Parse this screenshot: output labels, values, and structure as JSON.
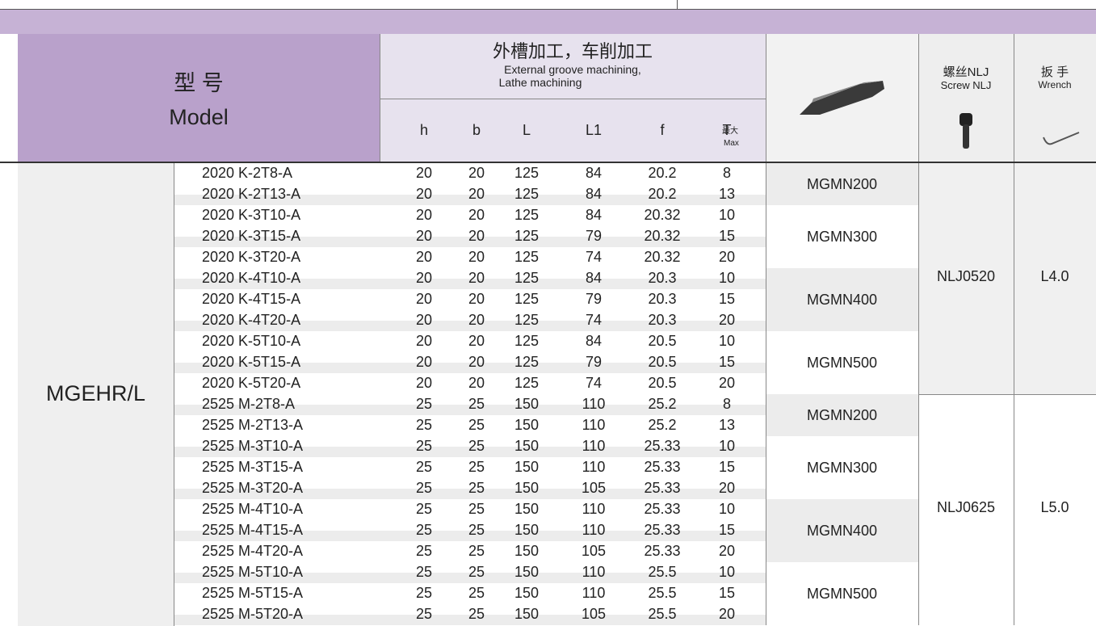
{
  "header": {
    "model_cn": "型 号",
    "model_en": "Model",
    "group_cn": "外槽加工，车削加工",
    "group_en": [
      "External groove machining,",
      "Lathe machining"
    ],
    "columns": [
      "h",
      "b",
      "L",
      "L1",
      "f",
      "T"
    ],
    "t_cn": "最大",
    "t_en": "Max",
    "screw_cn": "螺丝NLJ",
    "screw_en": "Screw NLJ",
    "wrench_cn": "扳 手",
    "wrench_en": "Wrench"
  },
  "family": "MGEHR/L",
  "groups": [
    {
      "screw": "NLJ0520",
      "wrench": "L4.0",
      "inserts": [
        {
          "insert": "MGMN200",
          "rows": [
            [
              "2020 K-2T8-A",
              "20",
              "20",
              "125",
              "84",
              "20.2",
              "8"
            ],
            [
              "2020 K-2T13-A",
              "20",
              "20",
              "125",
              "84",
              "20.2",
              "13"
            ]
          ]
        },
        {
          "insert": "MGMN300",
          "rows": [
            [
              "2020 K-3T10-A",
              "20",
              "20",
              "125",
              "84",
              "20.32",
              "10"
            ],
            [
              "2020 K-3T15-A",
              "20",
              "20",
              "125",
              "79",
              "20.32",
              "15"
            ],
            [
              "2020 K-3T20-A",
              "20",
              "20",
              "125",
              "74",
              "20.32",
              "20"
            ]
          ]
        },
        {
          "insert": "MGMN400",
          "rows": [
            [
              "2020 K-4T10-A",
              "20",
              "20",
              "125",
              "84",
              "20.3",
              "10"
            ],
            [
              "2020 K-4T15-A",
              "20",
              "20",
              "125",
              "79",
              "20.3",
              "15"
            ],
            [
              "2020 K-4T20-A",
              "20",
              "20",
              "125",
              "74",
              "20.3",
              "20"
            ]
          ]
        },
        {
          "insert": "MGMN500",
          "rows": [
            [
              "2020 K-5T10-A",
              "20",
              "20",
              "125",
              "84",
              "20.5",
              "10"
            ],
            [
              "2020 K-5T15-A",
              "20",
              "20",
              "125",
              "79",
              "20.5",
              "15"
            ],
            [
              "2020 K-5T20-A",
              "20",
              "20",
              "125",
              "74",
              "20.5",
              "20"
            ]
          ]
        }
      ]
    },
    {
      "screw": "NLJ0625",
      "wrench": "L5.0",
      "inserts": [
        {
          "insert": "MGMN200",
          "rows": [
            [
              "2525 M-2T8-A",
              "25",
              "25",
              "150",
              "110",
              "25.2",
              "8"
            ],
            [
              "2525 M-2T13-A",
              "25",
              "25",
              "150",
              "110",
              "25.2",
              "13"
            ]
          ]
        },
        {
          "insert": "MGMN300",
          "rows": [
            [
              "2525 M-3T10-A",
              "25",
              "25",
              "150",
              "110",
              "25.33",
              "10"
            ],
            [
              "2525 M-3T15-A",
              "25",
              "25",
              "150",
              "110",
              "25.33",
              "15"
            ],
            [
              "2525 M-3T20-A",
              "25",
              "25",
              "150",
              "105",
              "25.33",
              "20"
            ]
          ]
        },
        {
          "insert": "MGMN400",
          "rows": [
            [
              "2525 M-4T10-A",
              "25",
              "25",
              "150",
              "110",
              "25.33",
              "10"
            ],
            [
              "2525 M-4T15-A",
              "25",
              "25",
              "150",
              "110",
              "25.33",
              "15"
            ],
            [
              "2525 M-4T20-A",
              "25",
              "25",
              "150",
              "105",
              "25.33",
              "20"
            ]
          ]
        },
        {
          "insert": "MGMN500",
          "rows": [
            [
              "2525 M-5T10-A",
              "25",
              "25",
              "150",
              "110",
              "25.5",
              "10"
            ],
            [
              "2525 M-5T15-A",
              "25",
              "25",
              "150",
              "110",
              "25.5",
              "15"
            ],
            [
              "2525 M-5T20-A",
              "25",
              "25",
              "150",
              "105",
              "25.5",
              "20"
            ]
          ]
        }
      ]
    }
  ]
}
